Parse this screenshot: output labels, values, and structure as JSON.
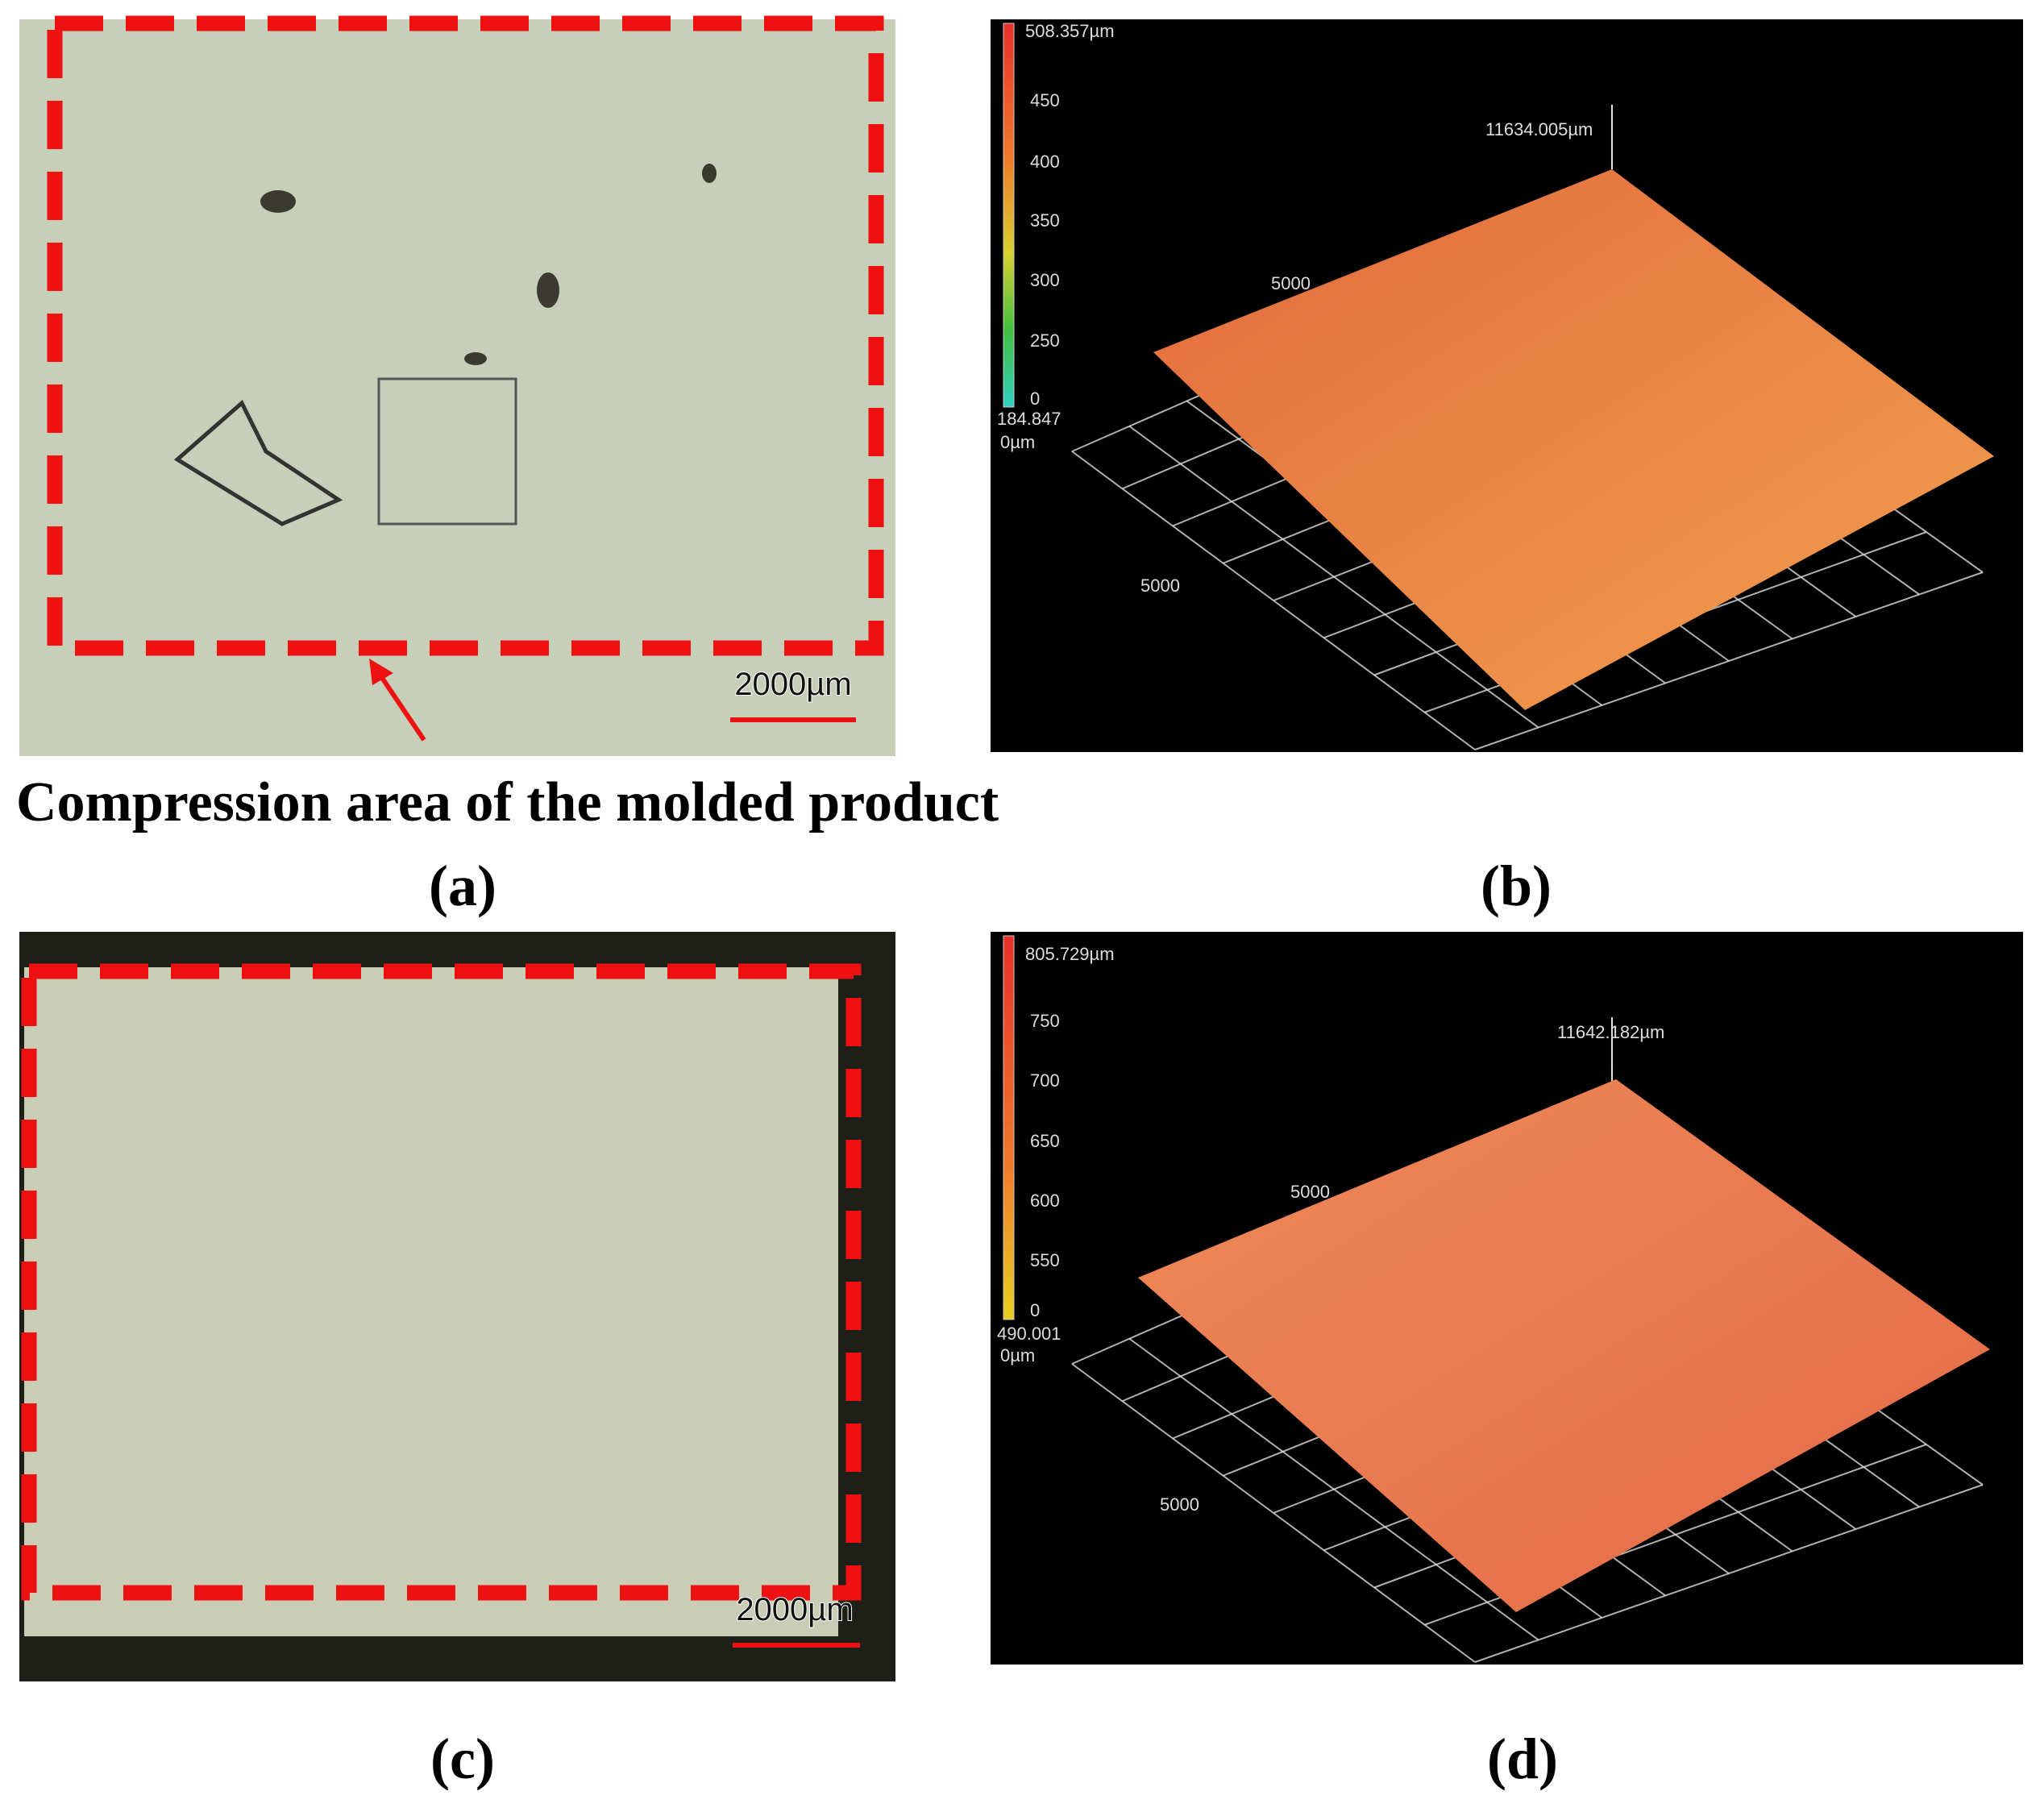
{
  "panels": [
    {
      "label": "(a)",
      "scale_bar": "2000µm",
      "caption": "Compression area of the molded product"
    },
    {
      "label": "(b)",
      "color_bar": {
        "max": "508.357µm",
        "ticks": [
          "450",
          "400",
          "350",
          "300",
          "250",
          "0"
        ],
        "min": "184.847",
        "unit": "0µm"
      },
      "extent": "11634.005µm",
      "axis_labels": [
        "5000",
        "5000"
      ]
    },
    {
      "label": "(c)",
      "scale_bar": "2000µm"
    },
    {
      "label": "(d)",
      "color_bar": {
        "max": "805.729µm",
        "ticks": [
          "750",
          "700",
          "650",
          "600",
          "550",
          "0"
        ],
        "min": "490.001",
        "unit": "0µm"
      },
      "extent": "11642.182µm",
      "axis_labels": [
        "5000",
        "5000"
      ]
    }
  ]
}
